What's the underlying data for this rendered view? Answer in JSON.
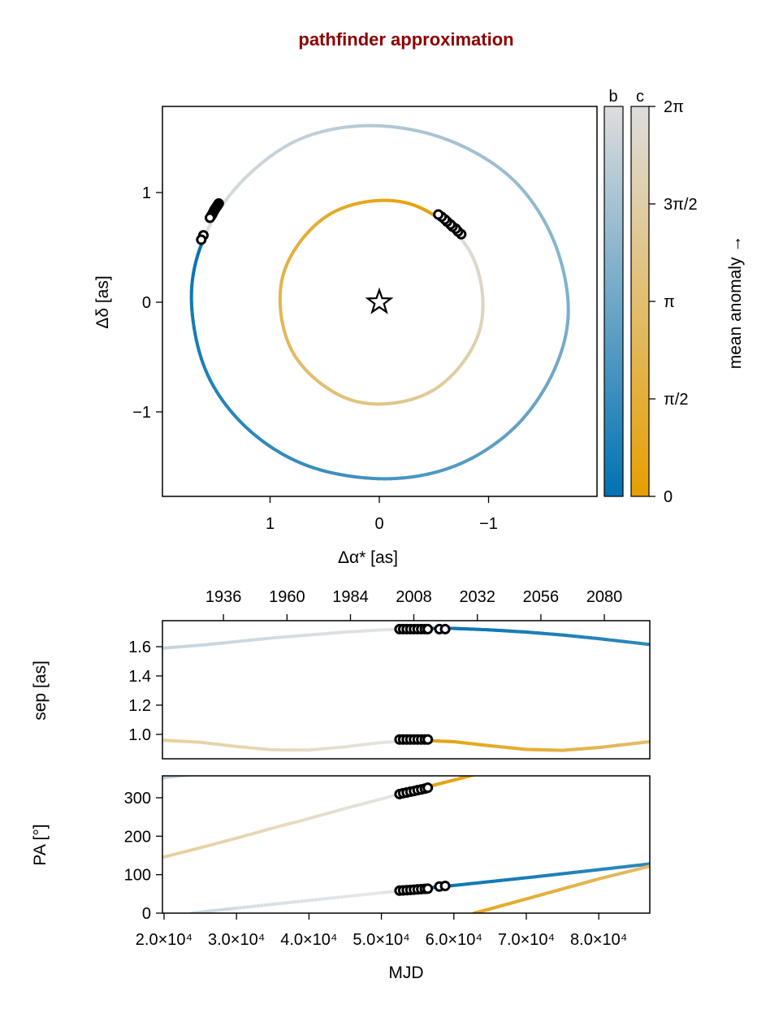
{
  "chart_data": [
    {
      "type": "line",
      "panel": "sky-plane orbits",
      "title": "pathfinder approximation",
      "xlabel": "Δα* [as]",
      "ylabel": "Δδ [as]",
      "xlim": [
        1.985,
        -1.99
      ],
      "ylim": [
        -1.77,
        1.785
      ],
      "x_reversed": true,
      "xticks": [
        {
          "v": 1,
          "label": "1"
        },
        {
          "v": 0,
          "label": "0"
        },
        {
          "v": -1,
          "label": "−1"
        }
      ],
      "yticks": [
        {
          "v": 1,
          "label": "1"
        },
        {
          "v": 0,
          "label": "0"
        },
        {
          "v": -1,
          "label": "−1"
        }
      ],
      "grid": false,
      "star_marker": [
        0,
        0
      ],
      "colorbar": {
        "label": "mean anomaly →",
        "ticks": [
          "0",
          "π/2",
          "π",
          "3π/2",
          "2π"
        ],
        "range": [
          0,
          6.2832
        ],
        "planets": [
          "b",
          "c"
        ]
      },
      "colormaps": {
        "b": [
          "#0072B2",
          "#DDDDDD"
        ],
        "c": [
          "#E69F00",
          "#DDDDDD"
        ]
      },
      "orbits": [
        {
          "name": "b",
          "ra": [
            1.59,
            1.72,
            1.59,
            1.22,
            0.66,
            -0.05,
            -0.7,
            -1.24,
            -1.6,
            -1.73,
            -1.58,
            -1.2,
            -0.6,
            0.08,
            0.72,
            1.24
          ],
          "dec": [
            0.62,
            0.05,
            -0.62,
            -1.14,
            -1.49,
            -1.61,
            -1.49,
            -1.14,
            -0.62,
            -0.05,
            0.6,
            1.14,
            1.49,
            1.61,
            1.49,
            1.12
          ]
        },
        {
          "name": "c",
          "ra": [
            -0.59,
            -0.27,
            0.09,
            0.44,
            0.71,
            0.88,
            0.9,
            0.79,
            0.55,
            0.23,
            -0.13,
            -0.48,
            -0.75,
            -0.92,
            -0.94,
            -0.83
          ],
          "dec": [
            0.73,
            0.9,
            0.92,
            0.81,
            0.57,
            0.25,
            -0.11,
            -0.46,
            -0.73,
            -0.9,
            -0.92,
            -0.81,
            -0.57,
            -0.25,
            0.11,
            0.46
          ]
        }
      ],
      "points": {
        "b": {
          "ra": [
            1.47,
            1.48,
            1.49,
            1.5,
            1.51,
            1.52,
            1.53,
            1.54,
            1.55,
            1.61,
            1.63
          ],
          "dec": [
            0.9,
            0.885,
            0.87,
            0.855,
            0.84,
            0.82,
            0.8,
            0.785,
            0.77,
            0.61,
            0.57
          ]
        },
        "c": {
          "ra": [
            -0.75,
            -0.72,
            -0.7,
            -0.67,
            -0.65,
            -0.62,
            -0.6,
            -0.57,
            -0.54
          ],
          "dec": [
            0.62,
            0.645,
            0.67,
            0.69,
            0.71,
            0.735,
            0.755,
            0.78,
            0.8
          ]
        }
      }
    },
    {
      "type": "line",
      "panel": "separation",
      "ylabel": "sep [as]",
      "xlim": [
        19780,
        87040
      ],
      "ylim": [
        0.833,
        1.778
      ],
      "yticks": [
        {
          "v": 1.0,
          "label": "1.0"
        },
        {
          "v": 1.2,
          "label": "1.2"
        },
        {
          "v": 1.4,
          "label": "1.4"
        },
        {
          "v": 1.6,
          "label": "1.6"
        }
      ],
      "top_axis_years": [
        {
          "mjd": 28200,
          "label": "1936"
        },
        {
          "mjd": 36970,
          "label": "1960"
        },
        {
          "mjd": 45730,
          "label": "1984"
        },
        {
          "mjd": 54470,
          "label": "2008"
        },
        {
          "mjd": 63240,
          "label": "2032"
        },
        {
          "mjd": 72010,
          "label": "2056"
        },
        {
          "mjd": 80770,
          "label": "2080"
        }
      ],
      "series": [
        {
          "name": "b",
          "mjd": [
            19780,
            25000,
            30000,
            35000,
            40000,
            45000,
            50000,
            55000,
            60000,
            65000,
            70000,
            75000,
            80000,
            87040
          ],
          "values": [
            1.59,
            1.61,
            1.635,
            1.66,
            1.68,
            1.7,
            1.715,
            1.725,
            1.725,
            1.715,
            1.7,
            1.68,
            1.655,
            1.615
          ]
        },
        {
          "name": "c",
          "mjd": [
            19780,
            25000,
            30000,
            35000,
            40000,
            45000,
            50000,
            55000,
            60000,
            65000,
            70000,
            75000,
            80000,
            87040
          ],
          "values": [
            0.96,
            0.946,
            0.917,
            0.894,
            0.893,
            0.915,
            0.944,
            0.96,
            0.95,
            0.922,
            0.897,
            0.891,
            0.91,
            0.95
          ]
        }
      ],
      "points": {
        "b": {
          "mjd": [
            52500,
            53000,
            53500,
            54000,
            54500,
            55000,
            55500,
            56000,
            56400,
            58000,
            58800
          ],
          "values": [
            1.72,
            1.72,
            1.72,
            1.72,
            1.72,
            1.72,
            1.72,
            1.72,
            1.72,
            1.72,
            1.72
          ]
        },
        "c": {
          "mjd": [
            52500,
            53000,
            53500,
            54000,
            54500,
            55000,
            55500,
            56000,
            56400
          ],
          "values": [
            0.965,
            0.965,
            0.965,
            0.965,
            0.965,
            0.965,
            0.965,
            0.965,
            0.965
          ]
        }
      }
    },
    {
      "type": "line",
      "panel": "position angle",
      "xlabel": "MJD",
      "ylabel": "PA [°]",
      "xlim": [
        19780,
        87040
      ],
      "ylim": [
        0,
        357
      ],
      "yticks": [
        {
          "v": 0,
          "label": "0"
        },
        {
          "v": 100,
          "label": "100"
        },
        {
          "v": 200,
          "label": "200"
        },
        {
          "v": 300,
          "label": "300"
        }
      ],
      "xticks": [
        {
          "v": 20000,
          "label": "2.0×10⁴"
        },
        {
          "v": 30000,
          "label": "3.0×10⁴"
        },
        {
          "v": 40000,
          "label": "4.0×10⁴"
        },
        {
          "v": 50000,
          "label": "5.0×10⁴"
        },
        {
          "v": 60000,
          "label": "6.0×10⁴"
        },
        {
          "v": 70000,
          "label": "7.0×10⁴"
        },
        {
          "v": 80000,
          "label": "8.0×10⁴"
        }
      ],
      "series": [
        {
          "name": "b",
          "mjd": [
            19780,
            23699,
            23700,
            30000,
            40000,
            50000,
            55000,
            60000,
            70000,
            80000,
            87040
          ],
          "values": [
            352,
            359.9,
            0,
            13,
            33,
            53,
            63,
            72,
            92,
            113,
            128
          ]
        },
        {
          "name": "c",
          "mjd": [
            19780,
            25000,
            30000,
            35000,
            40000,
            45000,
            50000,
            55000,
            60000,
            62799,
            62800,
            65000,
            70000,
            75000,
            80000,
            87040
          ],
          "values": [
            145,
            170,
            195,
            221,
            246,
            272,
            297,
            322,
            346,
            359.9,
            0,
            11,
            37,
            63,
            89,
            122
          ]
        }
      ],
      "points": {
        "b": {
          "mjd": [
            52500,
            53000,
            53500,
            54000,
            54500,
            55000,
            55500,
            56000,
            56400,
            58000,
            58800
          ],
          "values": [
            58.5,
            59.1,
            59.7,
            60.3,
            61.0,
            61.7,
            62.4,
            63.0,
            63.6,
            69.2,
            70.7
          ]
        },
        "c": {
          "mjd": [
            52500,
            53000,
            53500,
            54000,
            54500,
            55000,
            55500,
            56000,
            56400
          ],
          "values": [
            309.6,
            311.9,
            313.7,
            315.8,
            317.5,
            319.8,
            321.5,
            323.8,
            326.0
          ]
        }
      }
    }
  ]
}
